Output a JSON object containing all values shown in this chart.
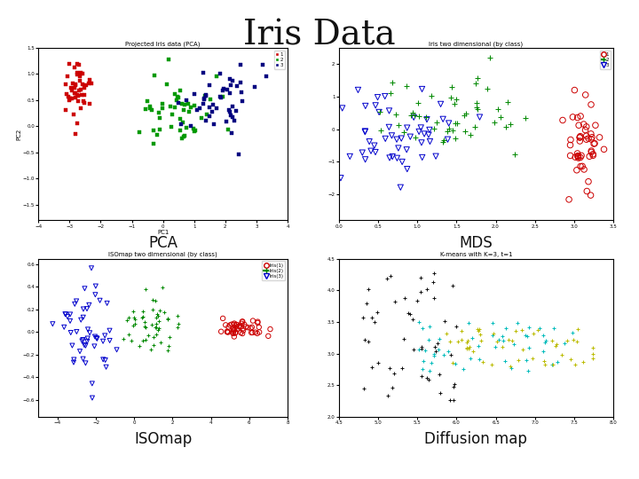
{
  "title": "Iris Data",
  "title_fontsize": 28,
  "title_font": "DejaVu Serif",
  "subplot_labels": [
    "PCA",
    "MDS",
    "ISOmap",
    "Diffusion map"
  ],
  "subplot_label_fontsize": 12,
  "background_color": "#ffffff",
  "pca": {
    "plot_title": "Projected Iris data (PCA)",
    "xlabel": "PC1",
    "ylabel": "PC2",
    "xlim": [
      -4,
      4
    ],
    "ylim": [
      -1.8,
      1.5
    ],
    "class1_color": "#cc0000",
    "class2_color": "#009900",
    "class3_color": "#000080",
    "marker": "s",
    "markersize": 3
  },
  "mds": {
    "plot_title": "Iris two dimensional (by class)",
    "xlim": [
      0,
      3.5
    ],
    "ylim": [
      -2.8,
      2.5
    ],
    "class1_color": "#cc0000",
    "class2_color": "#008800",
    "class3_color": "#0000cc",
    "class1_marker": "o",
    "class2_marker": "+",
    "class3_marker": "v",
    "markersize": 4
  },
  "isomap": {
    "plot_title": "ISOmap two dimensional (by class)",
    "xlim": [
      -5,
      8
    ],
    "ylim": [
      -0.75,
      0.65
    ],
    "class1_color": "#cc0000",
    "class2_color": "#008800",
    "class3_color": "#0000cc",
    "class1_marker": "o",
    "class2_marker": "+",
    "class3_marker": "v",
    "markersize": 3
  },
  "diffusion": {
    "plot_title": "K-means with K=3, t=1",
    "xlim": [
      4.5,
      8.0
    ],
    "ylim": [
      2.0,
      4.5
    ],
    "class1_color": "#111111",
    "class2_color": "#00bbbb",
    "class3_color": "#bbbb00",
    "marker": "+",
    "markersize": 3
  }
}
